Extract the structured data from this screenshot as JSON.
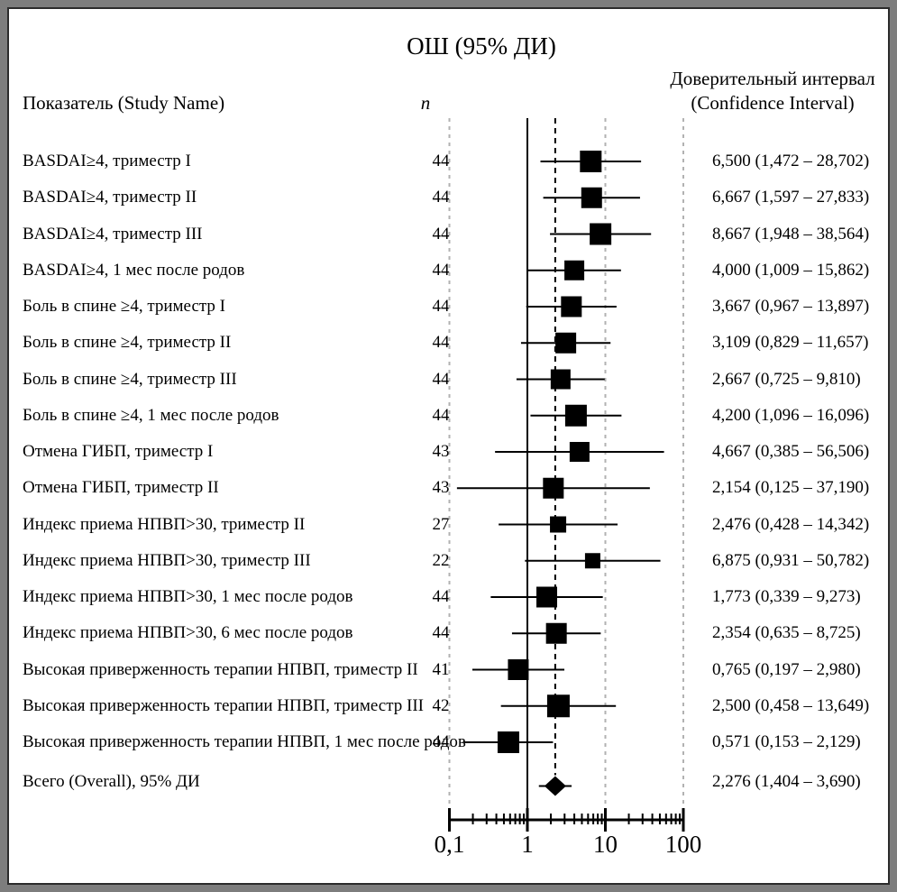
{
  "title": "ОШ (95% ДИ)",
  "columns": {
    "study_header": "Показатель (Study Name)",
    "n_header": "n",
    "ci_header_line1": "Доверительный интервал",
    "ci_header_line2": "(Confidence Interval)"
  },
  "colors": {
    "marker": "#000000",
    "line": "#000000",
    "grid_dashed": "#b2b2b2",
    "frame_outer": "#7d7d7d",
    "background": "#ffffff"
  },
  "chart_data": {
    "type": "forest",
    "title": "ОШ (95% ДИ)",
    "x_axis": {
      "scale": "log10",
      "range": [
        0.1,
        100
      ],
      "tick_values": [
        0.1,
        1,
        10,
        100
      ],
      "tick_labels": [
        "0,1",
        "1",
        "10",
        "100"
      ],
      "minor_tick_values": [
        0.2,
        0.3,
        0.4,
        0.5,
        0.6,
        0.7,
        0.8,
        0.9,
        2,
        3,
        4,
        5,
        6,
        7,
        8,
        9,
        20,
        30,
        40,
        50,
        60,
        70,
        80,
        90
      ],
      "reference_line_value": 1,
      "overall_dashed_line_value": 2.276,
      "dashed_gridline_values": [
        0.1,
        10,
        100
      ]
    },
    "rows": [
      {
        "label": "BASDAI≥4, триместр I",
        "n": "44",
        "or": 6.5,
        "lo": 1.472,
        "hi": 28.702,
        "ci_text": "6,500 (1,472 – 28,702)",
        "size": 24
      },
      {
        "label": "BASDAI≥4, триместр II",
        "n": "44",
        "or": 6.667,
        "lo": 1.597,
        "hi": 27.833,
        "ci_text": "6,667 (1,597 – 27,833)",
        "size": 23
      },
      {
        "label": "BASDAI≥4, триместр III",
        "n": "44",
        "or": 8.667,
        "lo": 1.948,
        "hi": 38.564,
        "ci_text": "8,667 (1,948 – 38,564)",
        "size": 24
      },
      {
        "label": "BASDAI≥4, 1 мес после родов",
        "n": "44",
        "or": 4.0,
        "lo": 1.009,
        "hi": 15.862,
        "ci_text": "4,000 (1,009 – 15,862)",
        "size": 22
      },
      {
        "label": "Боль в спине ≥4, триместр I",
        "n": "44",
        "or": 3.667,
        "lo": 0.967,
        "hi": 13.897,
        "ci_text": "3,667 (0,967 – 13,897)",
        "size": 23
      },
      {
        "label": "Боль в спине ≥4, триместр II",
        "n": "44",
        "or": 3.109,
        "lo": 0.829,
        "hi": 11.657,
        "ci_text": "3,109 (0,829 – 11,657)",
        "size": 23
      },
      {
        "label": "Боль в спине ≥4, триместр III",
        "n": "44",
        "or": 2.667,
        "lo": 0.725,
        "hi": 9.81,
        "ci_text": "2,667 (0,725 – 9,810)",
        "size": 22
      },
      {
        "label": "Боль в спине ≥4, 1 мес после родов",
        "n": "44",
        "or": 4.2,
        "lo": 1.096,
        "hi": 16.096,
        "ci_text": "4,200 (1,096 – 16,096)",
        "size": 24
      },
      {
        "label": "Отмена ГИБП, триместр I",
        "n": "43",
        "or": 4.667,
        "lo": 0.385,
        "hi": 56.506,
        "ci_text": "4,667 (0,385 – 56,506)",
        "size": 22
      },
      {
        "label": "Отмена ГИБП, триместр II",
        "n": "43",
        "or": 2.154,
        "lo": 0.125,
        "hi": 37.19,
        "ci_text": "2,154 (0,125 – 37,190)",
        "size": 23
      },
      {
        "label": "Индекс приема НПВП>30, триместр II",
        "n": "27",
        "or": 2.476,
        "lo": 0.428,
        "hi": 14.342,
        "ci_text": "2,476 (0,428 – 14,342)",
        "size": 18
      },
      {
        "label": "Индекс приема НПВП>30, триместр III",
        "n": "22",
        "or": 6.875,
        "lo": 0.931,
        "hi": 50.782,
        "ci_text": "6,875 (0,931 – 50,782)",
        "size": 17
      },
      {
        "label": "Индекс приема НПВП>30, 1 мес после родов",
        "n": "44",
        "or": 1.773,
        "lo": 0.339,
        "hi": 9.273,
        "ci_text": "1,773 (0,339 – 9,273)",
        "size": 23
      },
      {
        "label": "Индекс приема НПВП>30, 6 мес после родов",
        "n": "44",
        "or": 2.354,
        "lo": 0.635,
        "hi": 8.725,
        "ci_text": "2,354 (0,635 – 8,725)",
        "size": 23
      },
      {
        "label": "Высокая приверженность терапии НПВП, триместр II",
        "n": "41",
        "or": 0.765,
        "lo": 0.197,
        "hi": 2.98,
        "ci_text": "0,765 (0,197 – 2,980)",
        "size": 23
      },
      {
        "label": "Высокая приверженность терапии НПВП, триместр III",
        "n": "42",
        "or": 2.5,
        "lo": 0.458,
        "hi": 13.649,
        "ci_text": "2,500 (0,458 – 13,649)",
        "size": 25
      },
      {
        "label": "Высокая приверженность терапии НПВП, 1 мес после родов",
        "n": "44",
        "or": 0.571,
        "lo": 0.153,
        "hi": 2.129,
        "ci_text": "0,571 (0,153 – 2,129)",
        "size": 24
      }
    ],
    "overall": {
      "label": "Всего (Overall), 95% ДИ",
      "n": "",
      "or": 2.276,
      "lo": 1.404,
      "hi": 3.69,
      "ci_text": "2,276 (1,404 – 3,690)"
    }
  }
}
